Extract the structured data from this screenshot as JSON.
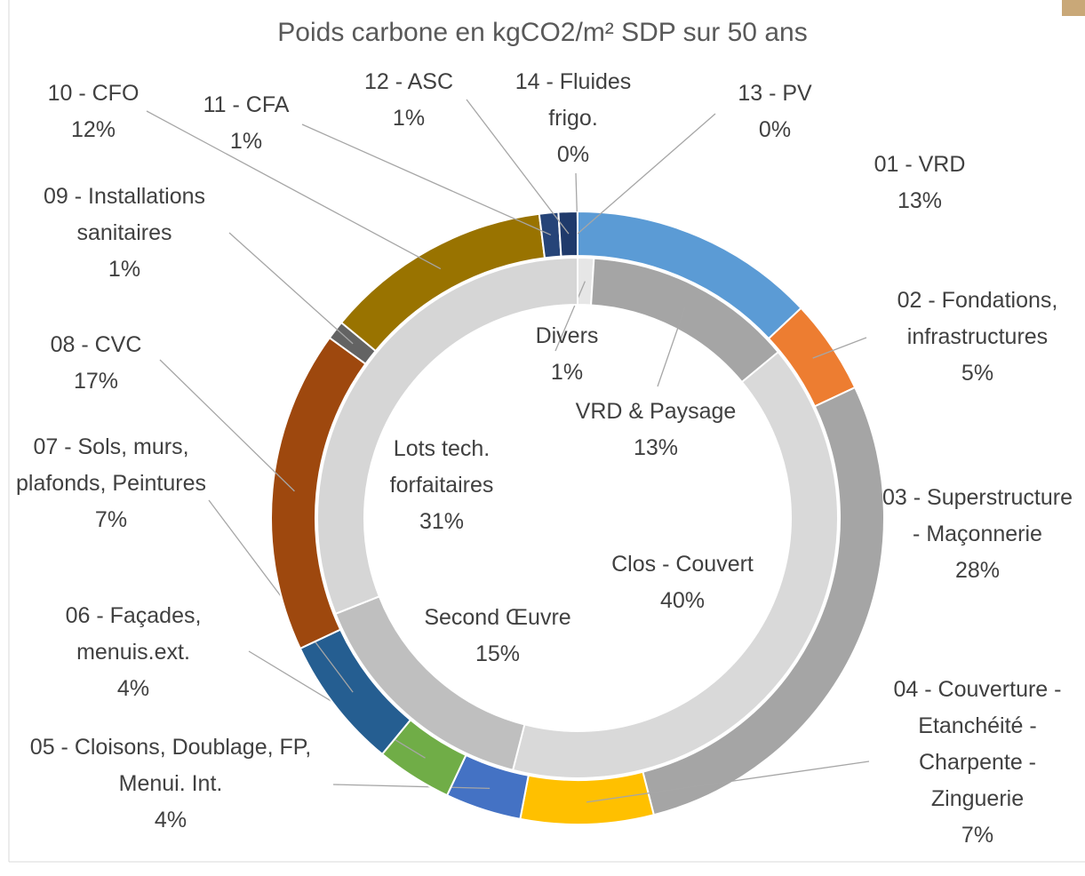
{
  "chart_data": {
    "type": "donut",
    "title": "Poids carbone en kgCO2/m² SDP sur 50 ans",
    "series": [
      {
        "categories": [
          "Divers",
          "VRD & Paysage",
          "Clos - Couvert",
          "Second Œuvre",
          "Lots tech. forfaitaires"
        ],
        "values": [
          1,
          13,
          40,
          15,
          31
        ],
        "value_labels": [
          "1%",
          "13%",
          "40%",
          "15%",
          "31%"
        ],
        "colors": [
          "#e6e6e6",
          "#a5a5a5",
          "#d9d9d9",
          "#bfbfbf",
          "#d6d6d6"
        ]
      },
      {
        "categories": [
          "01 - VRD",
          "02 - Fondations, infrastructures",
          "03 - Superstructure - Maçonnerie",
          "04 - Couverture - Etanchéité - Charpente - Zinguerie",
          "05 - Cloisons, Doublage, FP, Menui. Int.",
          "06 - Façades, menuis.ext.",
          "07 - Sols, murs, plafonds, Peintures",
          "08 - CVC",
          "09 - Installations sanitaires",
          "10 - CFO",
          "11 - CFA",
          "12 - ASC",
          "14 - Fluides frigo.",
          "13 - PV"
        ],
        "values": [
          13,
          5,
          28,
          7,
          4,
          4,
          7,
          17,
          1,
          12,
          1,
          1,
          0,
          0
        ],
        "value_labels": [
          "13%",
          "5%",
          "28%",
          "7%",
          "4%",
          "4%",
          "7%",
          "17%",
          "1%",
          "12%",
          "1%",
          "1%",
          "0%",
          "0%"
        ],
        "colors": [
          "#5b9bd5",
          "#ed7d31",
          "#a5a5a5",
          "#ffc000",
          "#4472c4",
          "#70ad47",
          "#255e91",
          "#9e480e",
          "#636363",
          "#997300",
          "#264478",
          "#1f3a6b",
          "#43682b",
          "#698ed0"
        ]
      }
    ]
  }
}
